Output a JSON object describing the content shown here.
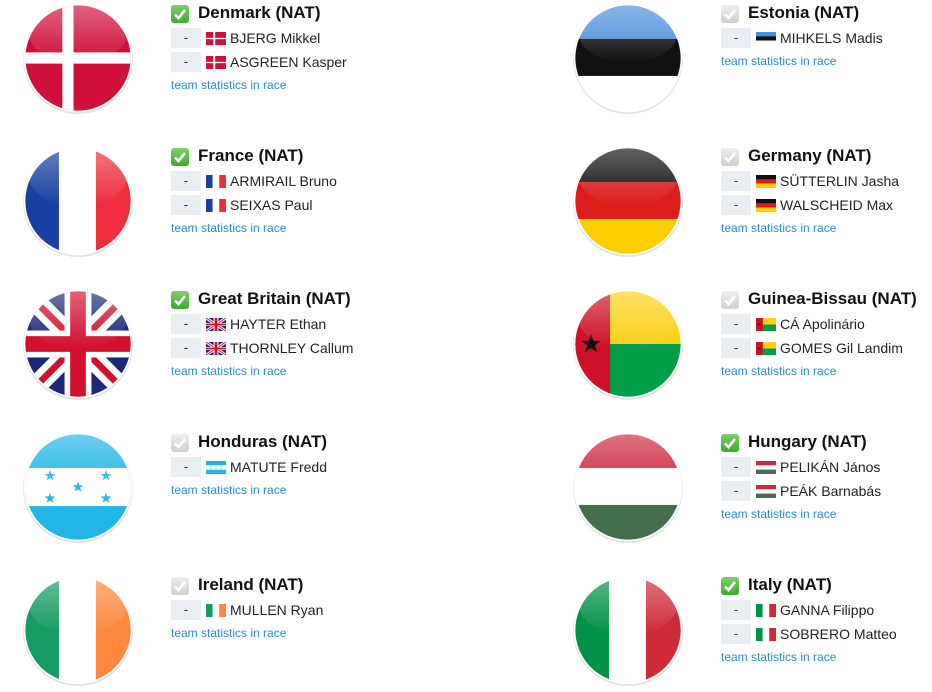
{
  "teams": [
    {
      "name": "Denmark (NAT)",
      "checked": true,
      "riders": [
        {
          "bib": "-",
          "name": "BJERG Mikkel"
        },
        {
          "bib": "-",
          "name": "ASGREEN Kasper"
        }
      ],
      "link": "team statistics in race"
    },
    {
      "name": "Estonia (NAT)",
      "checked": false,
      "riders": [
        {
          "bib": "-",
          "name": "MIHKELS Madis"
        }
      ],
      "link": "team statistics in race"
    },
    {
      "name": "France (NAT)",
      "checked": true,
      "riders": [
        {
          "bib": "-",
          "name": "ARMIRAIL Bruno"
        },
        {
          "bib": "-",
          "name": "SEIXAS Paul"
        }
      ],
      "link": "team statistics in race"
    },
    {
      "name": "Germany (NAT)",
      "checked": false,
      "riders": [
        {
          "bib": "-",
          "name": "SÜTTERLIN Jasha"
        },
        {
          "bib": "-",
          "name": "WALSCHEID Max"
        }
      ],
      "link": "team statistics in race"
    },
    {
      "name": "Great Britain (NAT)",
      "checked": true,
      "riders": [
        {
          "bib": "-",
          "name": "HAYTER Ethan"
        },
        {
          "bib": "-",
          "name": "THORNLEY Callum"
        }
      ],
      "link": "team statistics in race"
    },
    {
      "name": "Guinea-Bissau (NAT)",
      "checked": false,
      "riders": [
        {
          "bib": "-",
          "name": "CÁ Apolinário"
        },
        {
          "bib": "-",
          "name": "GOMES Gil Landim"
        }
      ],
      "link": "team statistics in race"
    },
    {
      "name": "Honduras (NAT)",
      "checked": false,
      "riders": [
        {
          "bib": "-",
          "name": "MATUTE Fredd"
        }
      ],
      "link": "team statistics in race"
    },
    {
      "name": "Hungary (NAT)",
      "checked": true,
      "riders": [
        {
          "bib": "-",
          "name": "PELIKÁN János"
        },
        {
          "bib": "-",
          "name": "PEÁK Barnabás"
        }
      ],
      "link": "team statistics in race"
    },
    {
      "name": "Ireland (NAT)",
      "checked": false,
      "riders": [
        {
          "bib": "-",
          "name": "MULLEN Ryan"
        }
      ],
      "link": "team statistics in race"
    },
    {
      "name": "Italy (NAT)",
      "checked": true,
      "riders": [
        {
          "bib": "-",
          "name": "GANNA Filippo"
        },
        {
          "bib": "-",
          "name": "SOBRERO Matteo"
        }
      ],
      "link": "team statistics in race"
    }
  ]
}
